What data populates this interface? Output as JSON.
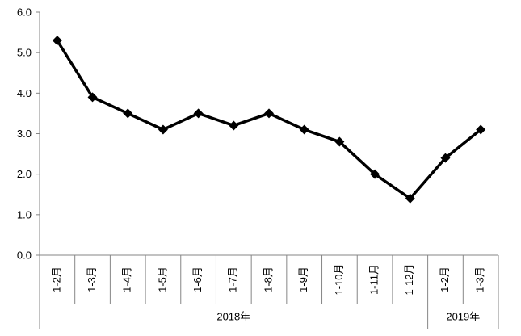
{
  "chart_data": {
    "type": "line",
    "categories": [
      "1-2月",
      "1-3月",
      "1-4月",
      "1-5月",
      "1-6月",
      "1-7月",
      "1-8月",
      "1-9月",
      "1-10月",
      "1-11月",
      "1-12月",
      "1-2月",
      "1-3月"
    ],
    "groups": [
      {
        "label": "2018年",
        "count": 11
      },
      {
        "label": "2019年",
        "count": 2
      }
    ],
    "series": [
      {
        "values": [
          5.3,
          3.9,
          3.5,
          3.1,
          3.5,
          3.2,
          3.5,
          3.1,
          2.8,
          2.0,
          1.4,
          2.4,
          3.1
        ],
        "color": "#000000",
        "marker": "diamond"
      }
    ],
    "yticks": [
      "0.0",
      "1.0",
      "2.0",
      "3.0",
      "4.0",
      "5.0",
      "6.0"
    ],
    "ylim": [
      0,
      6
    ],
    "title": "",
    "xlabel": "",
    "ylabel": "",
    "grid": false,
    "legend": "none"
  }
}
